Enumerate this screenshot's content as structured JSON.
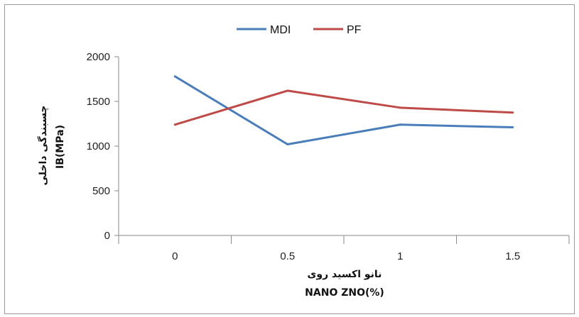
{
  "chart_data": {
    "type": "line",
    "title": "",
    "categories": [
      "0",
      "0.5",
      "1",
      "1.5"
    ],
    "series": [
      {
        "name": "MDI",
        "color": "#4a7ebb",
        "values": [
          1780,
          1020,
          1240,
          1210
        ]
      },
      {
        "name": "PF",
        "color": "#be4b48",
        "values": [
          1240,
          1620,
          1430,
          1375
        ]
      }
    ],
    "xlabel_fa": "نانو اکسید روی",
    "xlabel": "NANO ZNO(%)",
    "ylabel_fa": "چسبندگی داخلی",
    "ylabel": "IB(MPa)",
    "ylim": [
      0,
      2000
    ],
    "yticks": [
      0,
      500,
      1000,
      1500,
      2000
    ],
    "grid": false,
    "legend_position": "top"
  }
}
